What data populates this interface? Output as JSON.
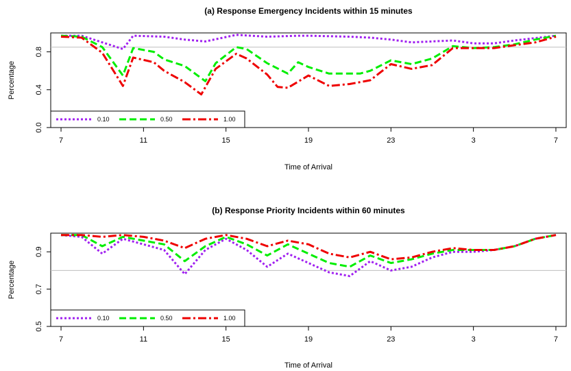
{
  "chart_data": [
    {
      "type": "line",
      "title": "(a) Response Emergency Incidents within 15 minutes",
      "xlabel": "Time of Arrival",
      "ylabel": "Percentage",
      "x_ticks": [
        "7",
        "11",
        "15",
        "19",
        "23",
        "3",
        "7"
      ],
      "y_ticks": [
        "0.0",
        "0.4",
        "0.8"
      ],
      "ylim": [
        0,
        1.0
      ],
      "reference_line": 0.85,
      "legend": {
        "placement": "bottom-left",
        "entries": [
          "0.10",
          "0.50",
          "1.00"
        ]
      },
      "series": [
        {
          "name": "0.10",
          "color": "#a020f0",
          "dash": "dotted",
          "points": [
            [
              7,
              0.97
            ],
            [
              8,
              0.97
            ],
            [
              9,
              0.9
            ],
            [
              10,
              0.83
            ],
            [
              10.5,
              0.97
            ],
            [
              12,
              0.96
            ],
            [
              13,
              0.93
            ],
            [
              14,
              0.91
            ],
            [
              15.5,
              0.98
            ],
            [
              17,
              0.96
            ],
            [
              18.5,
              0.97
            ],
            [
              19,
              0.97
            ],
            [
              21,
              0.96
            ],
            [
              22,
              0.95
            ],
            [
              23,
              0.93
            ],
            [
              24,
              0.9
            ],
            [
              26,
              0.92
            ],
            [
              27,
              0.89
            ],
            [
              28,
              0.89
            ],
            [
              29,
              0.92
            ],
            [
              31,
              0.97
            ]
          ]
        },
        {
          "name": "0.50",
          "color": "#00ee00",
          "dash": "dashed",
          "points": [
            [
              7,
              0.97
            ],
            [
              8,
              0.96
            ],
            [
              9,
              0.85
            ],
            [
              10,
              0.55
            ],
            [
              10.5,
              0.84
            ],
            [
              11.5,
              0.8
            ],
            [
              12,
              0.72
            ],
            [
              13,
              0.65
            ],
            [
              14,
              0.49
            ],
            [
              14.5,
              0.68
            ],
            [
              15.5,
              0.85
            ],
            [
              16,
              0.83
            ],
            [
              17,
              0.68
            ],
            [
              18,
              0.57
            ],
            [
              18.5,
              0.69
            ],
            [
              19,
              0.64
            ],
            [
              20,
              0.57
            ],
            [
              21.5,
              0.57
            ],
            [
              22,
              0.6
            ],
            [
              23,
              0.71
            ],
            [
              24,
              0.67
            ],
            [
              25,
              0.73
            ],
            [
              26,
              0.86
            ],
            [
              27,
              0.84
            ],
            [
              28,
              0.85
            ],
            [
              29,
              0.88
            ],
            [
              30,
              0.93
            ],
            [
              31,
              0.97
            ]
          ]
        },
        {
          "name": "1.00",
          "color": "#ee0000",
          "dash": "dashdot",
          "points": [
            [
              7,
              0.96
            ],
            [
              8,
              0.95
            ],
            [
              9,
              0.79
            ],
            [
              10,
              0.44
            ],
            [
              10.5,
              0.74
            ],
            [
              11.5,
              0.69
            ],
            [
              12,
              0.6
            ],
            [
              13,
              0.48
            ],
            [
              13.8,
              0.35
            ],
            [
              14.5,
              0.62
            ],
            [
              15.5,
              0.78
            ],
            [
              16,
              0.73
            ],
            [
              17,
              0.56
            ],
            [
              17.5,
              0.43
            ],
            [
              18,
              0.42
            ],
            [
              19,
              0.55
            ],
            [
              20,
              0.44
            ],
            [
              21,
              0.46
            ],
            [
              22,
              0.5
            ],
            [
              23,
              0.67
            ],
            [
              24,
              0.62
            ],
            [
              25,
              0.66
            ],
            [
              26,
              0.84
            ],
            [
              27,
              0.84
            ],
            [
              28,
              0.84
            ],
            [
              29,
              0.87
            ],
            [
              30,
              0.9
            ],
            [
              31,
              0.96
            ]
          ]
        }
      ]
    },
    {
      "type": "line",
      "title": "(b) Response Priority Incidents within 60 minutes",
      "xlabel": "Time of Arrival",
      "ylabel": "Percentage",
      "x_ticks": [
        "7",
        "11",
        "15",
        "19",
        "23",
        "3",
        "7"
      ],
      "y_ticks": [
        "0.5",
        "0.7",
        "0.9"
      ],
      "ylim": [
        0.5,
        1.0
      ],
      "reference_line": 0.8,
      "legend": {
        "placement": "bottom-left",
        "entries": [
          "0.10",
          "0.50",
          "1.00"
        ]
      },
      "series": [
        {
          "name": "0.10",
          "color": "#a020f0",
          "dash": "dotted",
          "points": [
            [
              7,
              0.99
            ],
            [
              8,
              0.98
            ],
            [
              9,
              0.89
            ],
            [
              10,
              0.97
            ],
            [
              11,
              0.94
            ],
            [
              12,
              0.91
            ],
            [
              13,
              0.78
            ],
            [
              14,
              0.91
            ],
            [
              15,
              0.97
            ],
            [
              16,
              0.91
            ],
            [
              17,
              0.82
            ],
            [
              18,
              0.89
            ],
            [
              19,
              0.84
            ],
            [
              20,
              0.79
            ],
            [
              21,
              0.77
            ],
            [
              22,
              0.85
            ],
            [
              23,
              0.8
            ],
            [
              24,
              0.82
            ],
            [
              25,
              0.87
            ],
            [
              26,
              0.9
            ],
            [
              27,
              0.9
            ],
            [
              28,
              0.91
            ],
            [
              29,
              0.93
            ],
            [
              30,
              0.97
            ],
            [
              31,
              0.99
            ]
          ]
        },
        {
          "name": "0.50",
          "color": "#00ee00",
          "dash": "dashed",
          "points": [
            [
              7,
              0.99
            ],
            [
              8,
              0.99
            ],
            [
              9,
              0.93
            ],
            [
              10,
              0.98
            ],
            [
              11,
              0.96
            ],
            [
              12,
              0.94
            ],
            [
              13,
              0.85
            ],
            [
              14,
              0.93
            ],
            [
              15,
              0.98
            ],
            [
              16,
              0.94
            ],
            [
              17,
              0.88
            ],
            [
              18,
              0.94
            ],
            [
              19,
              0.89
            ],
            [
              20,
              0.84
            ],
            [
              21,
              0.82
            ],
            [
              22,
              0.88
            ],
            [
              23,
              0.84
            ],
            [
              24,
              0.86
            ],
            [
              25,
              0.89
            ],
            [
              26,
              0.91
            ],
            [
              27,
              0.91
            ],
            [
              28,
              0.91
            ],
            [
              29,
              0.93
            ],
            [
              30,
              0.97
            ],
            [
              31,
              0.99
            ]
          ]
        },
        {
          "name": "1.00",
          "color": "#ee0000",
          "dash": "dashdot",
          "points": [
            [
              7,
              0.99
            ],
            [
              8,
              0.99
            ],
            [
              9,
              0.98
            ],
            [
              10,
              0.99
            ],
            [
              11,
              0.98
            ],
            [
              12,
              0.96
            ],
            [
              13,
              0.92
            ],
            [
              14,
              0.97
            ],
            [
              15,
              0.99
            ],
            [
              16,
              0.97
            ],
            [
              17,
              0.93
            ],
            [
              18,
              0.96
            ],
            [
              19,
              0.94
            ],
            [
              20,
              0.89
            ],
            [
              21,
              0.87
            ],
            [
              22,
              0.9
            ],
            [
              23,
              0.86
            ],
            [
              24,
              0.87
            ],
            [
              25,
              0.9
            ],
            [
              26,
              0.92
            ],
            [
              27,
              0.91
            ],
            [
              28,
              0.91
            ],
            [
              29,
              0.93
            ],
            [
              30,
              0.97
            ],
            [
              31,
              0.99
            ]
          ]
        }
      ]
    }
  ]
}
